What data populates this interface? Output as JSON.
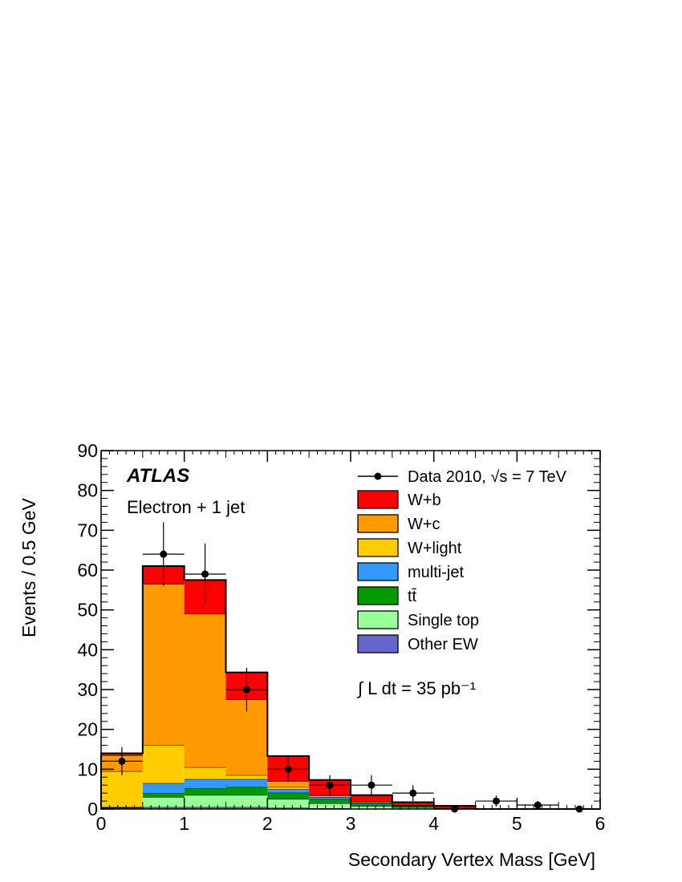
{
  "chart_data": {
    "type": "bar",
    "stacked": true,
    "histogram": true,
    "experiment": "ATLAS",
    "channel": "Electron + 1 jet",
    "xlabel": "Secondary Vertex Mass [GeV]",
    "ylabel": "Events / 0.5 GeV",
    "xlim": [
      0,
      6
    ],
    "ylim": [
      0,
      90
    ],
    "xticks": [
      0,
      1,
      2,
      3,
      4,
      5,
      6
    ],
    "yticks": [
      0,
      10,
      20,
      30,
      40,
      50,
      60,
      70,
      80,
      90
    ],
    "bin_edges": [
      0,
      0.5,
      1.0,
      1.5,
      2.0,
      2.5,
      3.0,
      3.5,
      4.0,
      4.5,
      5.0,
      5.5,
      6.0
    ],
    "legend_position": "top-right",
    "legend_data_label": "Data 2010, √s = 7 TeV",
    "luminosity_label": "∫ L dt = 35 pb⁻¹",
    "series": [
      {
        "name": "Other EW",
        "color": "#6666cc",
        "values": [
          0.3,
          0.5,
          0.5,
          0.5,
          0.3,
          0.2,
          0.1,
          0.1,
          0,
          0,
          0,
          0
        ]
      },
      {
        "name": "Single top",
        "color": "#99ff99",
        "values": [
          0,
          2.5,
          3.0,
          3.0,
          2.2,
          1.2,
          0.6,
          0.3,
          0.2,
          0,
          0,
          0
        ]
      },
      {
        "name": "tt̄",
        "color": "#009900",
        "values": [
          0.1,
          1.0,
          1.7,
          2.0,
          1.6,
          1.1,
          0.6,
          0.3,
          0.2,
          0,
          0,
          0
        ]
      },
      {
        "name": "multi-jet",
        "color": "#3399ff",
        "values": [
          0.1,
          2.5,
          2.3,
          2.0,
          0.9,
          0.5,
          0.3,
          0.1,
          0,
          0,
          0,
          0
        ]
      },
      {
        "name": "W+light",
        "color": "#ffcc00",
        "values": [
          9.0,
          9.5,
          3.0,
          1.0,
          0.5,
          0.3,
          0.2,
          0.1,
          0,
          0,
          0,
          0
        ]
      },
      {
        "name": "W+c",
        "color": "#ff9900",
        "values": [
          4.0,
          40.5,
          38.5,
          19.0,
          1.5,
          0.2,
          0.1,
          0.1,
          0,
          0,
          0,
          0
        ]
      },
      {
        "name": "W+b",
        "color": "#ff0000",
        "values": [
          0.5,
          4.5,
          8.5,
          6.8,
          6.3,
          3.8,
          1.6,
          0.7,
          0.4,
          0,
          0,
          0
        ]
      }
    ],
    "data": {
      "name": "Data 2010",
      "x": [
        0.25,
        0.75,
        1.25,
        1.75,
        2.25,
        2.75,
        3.25,
        3.75,
        4.25,
        4.75,
        5.25,
        5.75
      ],
      "y": [
        12,
        64,
        59,
        30,
        10,
        6,
        6,
        4,
        0,
        2,
        1,
        0
      ],
      "yerr": [
        3.5,
        8,
        7.7,
        5.5,
        3.2,
        2.5,
        2.5,
        2.0,
        0,
        1.4,
        1.0,
        0
      ]
    },
    "legend_order": [
      "W+b",
      "W+c",
      "W+light",
      "multi-jet",
      "tt̄",
      "Single top",
      "Other EW"
    ]
  }
}
